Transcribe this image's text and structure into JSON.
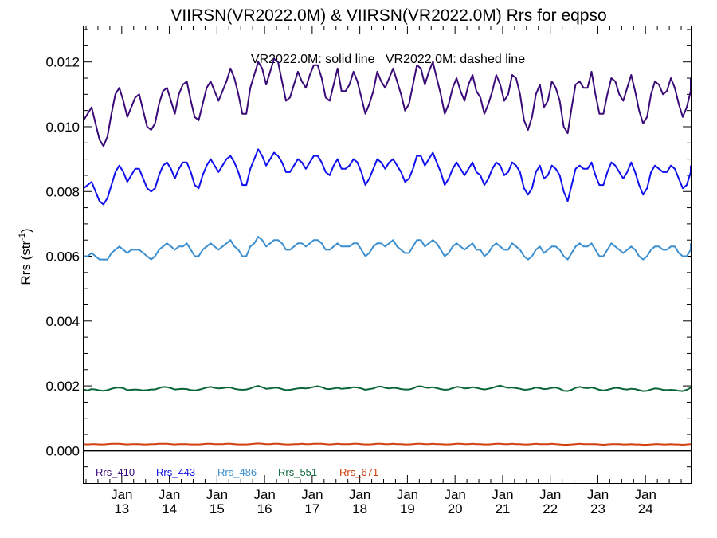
{
  "chart_data": {
    "type": "line",
    "title": "VIIRSN(VR2022.0M) & VIIRSN(VR2022.0M)  Rrs for eqpso",
    "annotation": "VR2022.0M: solid line   VR2022.0M: dashed line",
    "ylabel": "Rrs (str",
    "ylabel_sup": "-1",
    "ylabel_close": ")",
    "ylim": [
      -0.001,
      0.0131
    ],
    "y_ticks": [
      "0.000",
      "0.002",
      "0.004",
      "0.006",
      "0.008",
      "0.010",
      "0.012"
    ],
    "xlim": [
      12.2,
      24.95
    ],
    "x_ticks": [
      {
        "month": "Jan",
        "year": "13"
      },
      {
        "month": "Jan",
        "year": "14"
      },
      {
        "month": "Jan",
        "year": "15"
      },
      {
        "month": "Jan",
        "year": "16"
      },
      {
        "month": "Jan",
        "year": "17"
      },
      {
        "month": "Jan",
        "year": "18"
      },
      {
        "month": "Jan",
        "year": "19"
      },
      {
        "month": "Jan",
        "year": "20"
      },
      {
        "month": "Jan",
        "year": "21"
      },
      {
        "month": "Jan",
        "year": "22"
      },
      {
        "month": "Jan",
        "year": "23"
      },
      {
        "month": "Jan",
        "year": "24"
      }
    ],
    "zero_line": true,
    "grid": false,
    "legend_position": "bottom-left",
    "series": [
      {
        "name": "Rrs_410",
        "color": "#3a0a78",
        "x_start": 12.2,
        "x_step": 0.08333,
        "values": [
          0.0102,
          0.0104,
          0.0106,
          0.0101,
          0.0096,
          0.0094,
          0.0097,
          0.0104,
          0.011,
          0.0112,
          0.0108,
          0.0103,
          0.0106,
          0.0109,
          0.011,
          0.0105,
          0.01,
          0.0099,
          0.0101,
          0.0107,
          0.0111,
          0.0112,
          0.0108,
          0.0104,
          0.011,
          0.0113,
          0.0114,
          0.0108,
          0.0103,
          0.0102,
          0.0107,
          0.0112,
          0.0114,
          0.0111,
          0.0108,
          0.0111,
          0.0114,
          0.0118,
          0.0115,
          0.011,
          0.0104,
          0.0104,
          0.0112,
          0.0116,
          0.012,
          0.0118,
          0.0113,
          0.0117,
          0.0121,
          0.012,
          0.0114,
          0.0108,
          0.0109,
          0.0113,
          0.0117,
          0.0114,
          0.0112,
          0.0116,
          0.0119,
          0.0119,
          0.0115,
          0.0109,
          0.0108,
          0.0113,
          0.0118,
          0.0111,
          0.0111,
          0.0113,
          0.0117,
          0.0114,
          0.0109,
          0.0104,
          0.0107,
          0.0111,
          0.0117,
          0.0114,
          0.0112,
          0.0115,
          0.0118,
          0.0114,
          0.011,
          0.0105,
          0.0107,
          0.0113,
          0.0119,
          0.0118,
          0.0113,
          0.0117,
          0.012,
          0.0115,
          0.011,
          0.0104,
          0.0107,
          0.0112,
          0.0115,
          0.0111,
          0.0108,
          0.0113,
          0.0116,
          0.0111,
          0.0109,
          0.0104,
          0.0107,
          0.0111,
          0.0116,
          0.0113,
          0.0108,
          0.011,
          0.0116,
          0.0115,
          0.011,
          0.0102,
          0.0099,
          0.0103,
          0.011,
          0.0113,
          0.0106,
          0.0108,
          0.0114,
          0.0112,
          0.0108,
          0.01,
          0.0098,
          0.0106,
          0.0113,
          0.0114,
          0.0112,
          0.0112,
          0.0117,
          0.011,
          0.0104,
          0.0104,
          0.011,
          0.0115,
          0.0114,
          0.011,
          0.0108,
          0.0112,
          0.0116,
          0.0111,
          0.0105,
          0.0101,
          0.0103,
          0.011,
          0.0114,
          0.0113,
          0.011,
          0.0111,
          0.0115,
          0.0112,
          0.0107,
          0.0103,
          0.0106,
          0.0111,
          0.0115
        ]
      },
      {
        "name": "Rrs_443",
        "color": "#1010ee",
        "x_start": 12.2,
        "x_step": 0.08333,
        "values": [
          0.0081,
          0.0082,
          0.0083,
          0.008,
          0.0077,
          0.0076,
          0.0078,
          0.0082,
          0.0086,
          0.0088,
          0.0086,
          0.0083,
          0.0085,
          0.0087,
          0.0087,
          0.0084,
          0.0081,
          0.008,
          0.0081,
          0.0085,
          0.0088,
          0.0089,
          0.0087,
          0.0084,
          0.0087,
          0.0089,
          0.0089,
          0.0086,
          0.0082,
          0.0081,
          0.0085,
          0.0088,
          0.009,
          0.0088,
          0.0086,
          0.0088,
          0.009,
          0.0091,
          0.0089,
          0.0086,
          0.0082,
          0.0082,
          0.0087,
          0.009,
          0.0093,
          0.0091,
          0.0088,
          0.009,
          0.0092,
          0.0091,
          0.0089,
          0.0086,
          0.0086,
          0.0088,
          0.009,
          0.0089,
          0.0087,
          0.0089,
          0.0091,
          0.0091,
          0.0089,
          0.0086,
          0.0085,
          0.0088,
          0.009,
          0.0087,
          0.0087,
          0.0088,
          0.009,
          0.0089,
          0.0086,
          0.0082,
          0.0084,
          0.0087,
          0.009,
          0.0089,
          0.0087,
          0.0089,
          0.009,
          0.0088,
          0.0086,
          0.0083,
          0.0084,
          0.0087,
          0.0091,
          0.0091,
          0.0088,
          0.009,
          0.0092,
          0.0089,
          0.0086,
          0.0082,
          0.0084,
          0.0087,
          0.0089,
          0.0087,
          0.0085,
          0.0087,
          0.0089,
          0.0086,
          0.0085,
          0.0082,
          0.0084,
          0.0087,
          0.0089,
          0.0088,
          0.0085,
          0.0086,
          0.0089,
          0.0088,
          0.0086,
          0.0081,
          0.0079,
          0.0081,
          0.0086,
          0.0088,
          0.0084,
          0.0085,
          0.0088,
          0.0087,
          0.0085,
          0.008,
          0.0077,
          0.0082,
          0.0087,
          0.0088,
          0.0087,
          0.0087,
          0.0089,
          0.0085,
          0.0082,
          0.0082,
          0.0086,
          0.0089,
          0.0088,
          0.0086,
          0.0084,
          0.0086,
          0.0089,
          0.0086,
          0.0082,
          0.0079,
          0.0081,
          0.0086,
          0.0088,
          0.0087,
          0.0086,
          0.0086,
          0.0088,
          0.0087,
          0.0084,
          0.0081,
          0.0082,
          0.0086,
          0.0088
        ]
      },
      {
        "name": "Rrs_486",
        "color": "#3b8fd0",
        "x_start": 12.2,
        "x_step": 0.08333,
        "values": [
          0.006,
          0.006,
          0.0061,
          0.006,
          0.0059,
          0.0059,
          0.0059,
          0.0061,
          0.0062,
          0.0063,
          0.0062,
          0.0061,
          0.0062,
          0.0062,
          0.0062,
          0.0061,
          0.006,
          0.0059,
          0.006,
          0.0062,
          0.0063,
          0.0064,
          0.0063,
          0.0062,
          0.0063,
          0.0063,
          0.0064,
          0.0062,
          0.006,
          0.006,
          0.0062,
          0.0063,
          0.0064,
          0.0063,
          0.0062,
          0.0063,
          0.0064,
          0.0065,
          0.0063,
          0.0062,
          0.006,
          0.006,
          0.0063,
          0.0064,
          0.0066,
          0.0065,
          0.0063,
          0.0064,
          0.0065,
          0.0065,
          0.0064,
          0.0062,
          0.0062,
          0.0063,
          0.0064,
          0.0064,
          0.0063,
          0.0064,
          0.0065,
          0.0065,
          0.0064,
          0.0062,
          0.0062,
          0.0063,
          0.0064,
          0.0063,
          0.0063,
          0.0063,
          0.0064,
          0.0064,
          0.0062,
          0.006,
          0.0061,
          0.0063,
          0.0064,
          0.0064,
          0.0063,
          0.0064,
          0.0065,
          0.0063,
          0.0062,
          0.0061,
          0.0061,
          0.0063,
          0.0065,
          0.0065,
          0.0063,
          0.0064,
          0.0065,
          0.0064,
          0.0062,
          0.006,
          0.0061,
          0.0063,
          0.0064,
          0.0063,
          0.0062,
          0.0063,
          0.0064,
          0.0062,
          0.0062,
          0.006,
          0.0061,
          0.0063,
          0.0064,
          0.0063,
          0.0062,
          0.0062,
          0.0064,
          0.0063,
          0.0062,
          0.006,
          0.0059,
          0.006,
          0.0062,
          0.0063,
          0.0061,
          0.0062,
          0.0063,
          0.0063,
          0.0062,
          0.006,
          0.0059,
          0.0061,
          0.0063,
          0.0064,
          0.0063,
          0.0063,
          0.0064,
          0.0062,
          0.006,
          0.006,
          0.0062,
          0.0064,
          0.0063,
          0.0062,
          0.0061,
          0.0062,
          0.0063,
          0.0062,
          0.006,
          0.0059,
          0.006,
          0.0062,
          0.0063,
          0.0063,
          0.0062,
          0.0062,
          0.0063,
          0.0063,
          0.0061,
          0.006,
          0.006,
          0.0062,
          0.0064
        ]
      },
      {
        "name": "Rrs_551",
        "color": "#0a6636",
        "x_start": 12.2,
        "x_step": 0.08333,
        "values": [
          0.00189,
          0.00186,
          0.0019,
          0.00189,
          0.00186,
          0.00185,
          0.00187,
          0.00191,
          0.00194,
          0.00195,
          0.00193,
          0.00187,
          0.00188,
          0.00189,
          0.00188,
          0.00186,
          0.00187,
          0.00189,
          0.00189,
          0.00193,
          0.00197,
          0.00196,
          0.00193,
          0.00189,
          0.0019,
          0.00191,
          0.0019,
          0.00187,
          0.00186,
          0.00188,
          0.00191,
          0.00195,
          0.00197,
          0.00194,
          0.00192,
          0.00193,
          0.00195,
          0.00195,
          0.00191,
          0.00189,
          0.00188,
          0.00189,
          0.00192,
          0.00197,
          0.002,
          0.00196,
          0.00191,
          0.00192,
          0.00194,
          0.00194,
          0.0019,
          0.00187,
          0.00188,
          0.0019,
          0.00192,
          0.00193,
          0.00192,
          0.00194,
          0.00197,
          0.00199,
          0.00196,
          0.00191,
          0.0019,
          0.00192,
          0.00194,
          0.00191,
          0.00192,
          0.00193,
          0.00196,
          0.00195,
          0.00192,
          0.00188,
          0.0019,
          0.00192,
          0.00197,
          0.00198,
          0.00194,
          0.00192,
          0.00194,
          0.00193,
          0.0019,
          0.00189,
          0.00189,
          0.00192,
          0.00198,
          0.00199,
          0.00195,
          0.00194,
          0.00196,
          0.00193,
          0.0019,
          0.00188,
          0.00189,
          0.00193,
          0.00197,
          0.00196,
          0.00192,
          0.00193,
          0.00196,
          0.00194,
          0.00191,
          0.00189,
          0.00191,
          0.00194,
          0.00198,
          0.00201,
          0.00197,
          0.00194,
          0.00195,
          0.00193,
          0.00191,
          0.00188,
          0.00189,
          0.00191,
          0.00195,
          0.00193,
          0.0019,
          0.00191,
          0.00194,
          0.00195,
          0.00191,
          0.00185,
          0.00184,
          0.00188,
          0.00194,
          0.00197,
          0.00194,
          0.00193,
          0.00195,
          0.00192,
          0.00188,
          0.00186,
          0.00188,
          0.00191,
          0.00194,
          0.00193,
          0.0019,
          0.00189,
          0.00191,
          0.0019,
          0.00187,
          0.00184,
          0.00185,
          0.00189,
          0.00192,
          0.00191,
          0.00188,
          0.00187,
          0.00188,
          0.00187,
          0.00185,
          0.00184,
          0.00188,
          0.00194,
          0.00196
        ]
      },
      {
        "name": "Rrs_671",
        "color": "#d2400e",
        "x_start": 12.2,
        "x_step": 0.08333,
        "values": [
          0.0002,
          0.00019,
          0.0002,
          0.0002,
          0.00019,
          0.00019,
          0.0002,
          0.00021,
          0.00021,
          0.00021,
          0.0002,
          0.00019,
          0.0002,
          0.0002,
          0.0002,
          0.00019,
          0.00019,
          0.0002,
          0.0002,
          0.00021,
          0.00021,
          0.00021,
          0.0002,
          0.00019,
          0.0002,
          0.0002,
          0.0002,
          0.00019,
          0.00019,
          0.00019,
          0.0002,
          0.00021,
          0.00021,
          0.0002,
          0.0002,
          0.0002,
          0.00021,
          0.00021,
          0.0002,
          0.00019,
          0.00019,
          0.00019,
          0.0002,
          0.00021,
          0.00022,
          0.00021,
          0.0002,
          0.0002,
          0.00021,
          0.00021,
          0.0002,
          0.00019,
          0.00019,
          0.0002,
          0.0002,
          0.00021,
          0.0002,
          0.0002,
          0.00021,
          0.00021,
          0.00021,
          0.0002,
          0.00019,
          0.0002,
          0.00021,
          0.0002,
          0.0002,
          0.0002,
          0.00021,
          0.00021,
          0.0002,
          0.00019,
          0.00019,
          0.0002,
          0.00021,
          0.00021,
          0.0002,
          0.0002,
          0.00021,
          0.0002,
          0.0002,
          0.00019,
          0.00019,
          0.0002,
          0.00021,
          0.00021,
          0.0002,
          0.0002,
          0.00021,
          0.0002,
          0.0002,
          0.00019,
          0.00019,
          0.0002,
          0.00021,
          0.00021,
          0.0002,
          0.0002,
          0.00021,
          0.0002,
          0.0002,
          0.00019,
          0.00019,
          0.0002,
          0.00021,
          0.00021,
          0.0002,
          0.0002,
          0.00021,
          0.0002,
          0.0002,
          0.00019,
          0.00019,
          0.0002,
          0.00021,
          0.0002,
          0.0002,
          0.0002,
          0.00021,
          0.0002,
          0.00019,
          0.00018,
          0.00018,
          0.00019,
          0.0002,
          0.00021,
          0.0002,
          0.0002,
          0.0002,
          0.0002,
          0.00019,
          0.00018,
          0.00019,
          0.0002,
          0.0002,
          0.0002,
          0.00019,
          0.00019,
          0.0002,
          0.00019,
          0.00019,
          0.00018,
          0.00018,
          0.00019,
          0.0002,
          0.0002,
          0.00019,
          0.00019,
          0.0002,
          0.00019,
          0.00019,
          0.00018,
          0.00019,
          0.0002,
          0.00021
        ]
      }
    ]
  }
}
